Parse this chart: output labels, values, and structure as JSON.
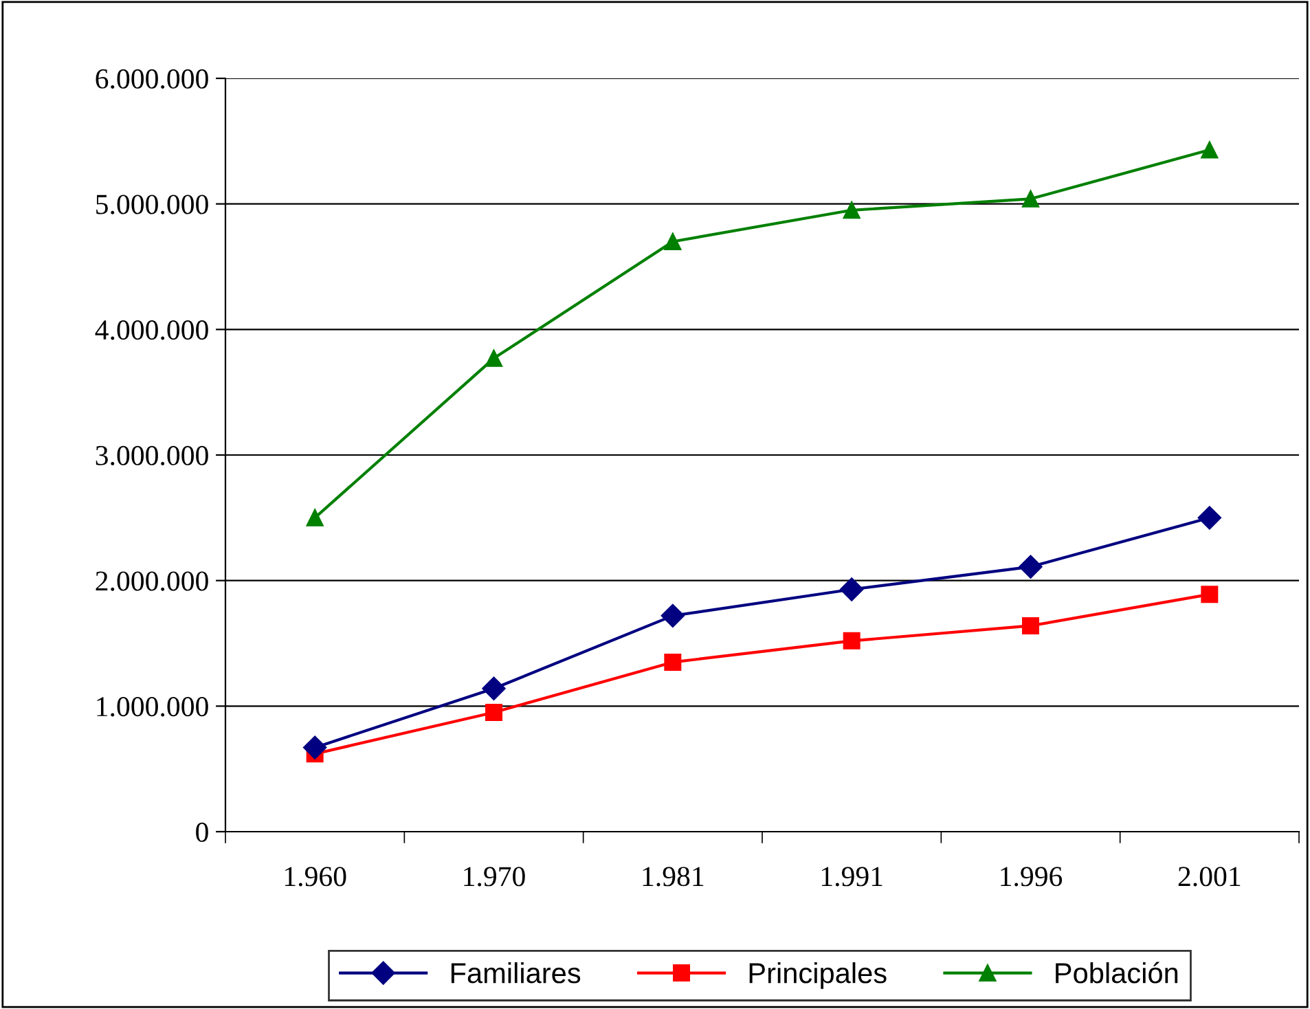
{
  "chart_data": {
    "type": "line",
    "categories": [
      "1.960",
      "1.970",
      "1.981",
      "1.991",
      "1.996",
      "2.001"
    ],
    "series": [
      {
        "name": "Familiares",
        "color": "#000080",
        "marker": "diamond",
        "values": [
          670000,
          1140000,
          1720000,
          1930000,
          2110000,
          2500000
        ]
      },
      {
        "name": "Principales",
        "color": "#ff0000",
        "marker": "square",
        "values": [
          620000,
          950000,
          1350000,
          1520000,
          1640000,
          1890000
        ]
      },
      {
        "name": "Población",
        "color": "#008000",
        "marker": "triangle",
        "values": [
          2500000,
          3770000,
          4700000,
          4950000,
          5040000,
          5430000
        ]
      }
    ],
    "ylim": [
      0,
      6000000
    ],
    "yticks": [
      0,
      {
        "value": 1000000,
        "label": "1.000.000"
      },
      {
        "value": 2000000,
        "label": "2.000.000"
      },
      {
        "value": 3000000,
        "label": "3.000.000"
      },
      {
        "value": 4000000,
        "label": "4.000.000"
      },
      {
        "value": 5000000,
        "label": "5.000.000"
      },
      {
        "value": 6000000,
        "label": "6.000.000"
      }
    ],
    "grid": "y",
    "legend": "bottom",
    "line_style": "solid"
  }
}
